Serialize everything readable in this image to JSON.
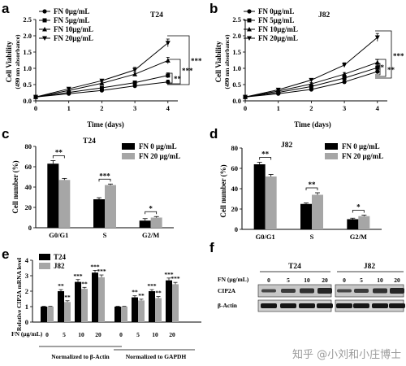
{
  "panels": {
    "a": "a",
    "b": "b",
    "c": "c",
    "d": "d",
    "e": "e",
    "f": "f"
  },
  "panel_a": {
    "title": "T24",
    "ylabel": "Cell Viability",
    "ylabel2": "(490 nm absorbance)",
    "xlabel": "Time (days)",
    "legend": [
      "FN  0μg/mL",
      "FN  5μg/mL",
      "FN  10μg/mL",
      "FN  20μg/mL"
    ],
    "sig": [
      "**",
      "***",
      "***"
    ]
  },
  "panel_b": {
    "title": "J82",
    "ylabel": "Cell Viability",
    "ylabel2": "(490 nm absorbance)",
    "xlabel": "Time (days)",
    "legend": [
      "FN  0μg/mL",
      "FN  5μg/mL",
      "FN  10μg/mL",
      "FN  20μg/mL"
    ],
    "sig": [
      "**",
      "**",
      "***"
    ]
  },
  "panel_c": {
    "title": "T24",
    "ylabel": "Cell number (%)",
    "legend": [
      "FN 0 μg/mL",
      "FN 20 μg/mL"
    ],
    "sig": [
      "**",
      "***",
      "*"
    ]
  },
  "panel_d": {
    "title": "J82",
    "ylabel": "Cell number (%)",
    "legend": [
      "FN 0 μg/mL",
      "FN 20 μg/mL"
    ],
    "sig": [
      "**",
      "**",
      "*"
    ]
  },
  "panel_e": {
    "ylabel": "Relative CIP2A mRNA level",
    "legend": [
      "T24",
      "J82"
    ],
    "fn_label": "FN (μg/mL)",
    "group_labels": [
      "Normalized to β-Actin",
      "Normalized to GAPDH"
    ],
    "sig_t24": [
      "",
      "**",
      "***",
      "***",
      "",
      "**",
      "***",
      "***"
    ],
    "sig_j82": [
      "",
      "**",
      "**",
      "***",
      "",
      "**",
      "**",
      "***"
    ]
  },
  "panel_f": {
    "cell_lines": [
      "T24",
      "J82"
    ],
    "fn_label": "FN (μg/mL)",
    "rows": [
      "CIP2A",
      "β-Actin"
    ]
  },
  "watermark": "知乎 @小刘和小庄博士",
  "chart_data": [
    {
      "type": "line",
      "title": "T24",
      "xlabel": "Time (days)",
      "ylabel": "Cell Viability (490 nm absorbance)",
      "x": [
        0,
        1,
        2,
        3,
        4
      ],
      "xlim": [
        0,
        4.3
      ],
      "ylim": [
        0,
        2.5
      ],
      "xticks": [
        "0",
        "1",
        "2",
        "3",
        "4"
      ],
      "yticks": [
        "0.0",
        "0.5",
        "1.0",
        "1.5",
        "2.0",
        "2.5"
      ],
      "series": [
        {
          "name": "FN  0μg/mL",
          "marker": "circle",
          "values": [
            0.12,
            0.22,
            0.32,
            0.46,
            0.58
          ],
          "err": [
            0.02,
            0.02,
            0.03,
            0.04,
            0.06
          ]
        },
        {
          "name": "FN  5μg/mL",
          "marker": "square",
          "values": [
            0.12,
            0.26,
            0.4,
            0.56,
            0.78
          ],
          "err": [
            0.02,
            0.02,
            0.03,
            0.05,
            0.08
          ]
        },
        {
          "name": "FN  10μg/mL",
          "marker": "triangle-up",
          "values": [
            0.12,
            0.32,
            0.54,
            0.82,
            1.24
          ],
          "err": [
            0.02,
            0.03,
            0.04,
            0.06,
            0.1
          ]
        },
        {
          "name": "FN  20μg/mL",
          "marker": "triangle-down",
          "values": [
            0.12,
            0.37,
            0.62,
            0.95,
            1.78
          ],
          "err": [
            0.02,
            0.03,
            0.04,
            0.08,
            0.12
          ]
        }
      ]
    },
    {
      "type": "line",
      "title": "J82",
      "xlabel": "Time (days)",
      "ylabel": "Cell Viability (490 nm absorbance)",
      "x": [
        0,
        1,
        2,
        3,
        4
      ],
      "xlim": [
        0,
        4.3
      ],
      "ylim": [
        0,
        2.5
      ],
      "xticks": [
        "0",
        "1",
        "2",
        "3",
        "4"
      ],
      "yticks": [
        "0.0",
        "0.5",
        "1.0",
        "1.5",
        "2.0",
        "2.5"
      ],
      "series": [
        {
          "name": "FN  0μg/mL",
          "marker": "circle",
          "values": [
            0.12,
            0.22,
            0.35,
            0.58,
            0.9
          ],
          "err": [
            0.02,
            0.02,
            0.03,
            0.04,
            0.07
          ]
        },
        {
          "name": "FN  5μg/mL",
          "marker": "square",
          "values": [
            0.12,
            0.26,
            0.44,
            0.7,
            1.02
          ],
          "err": [
            0.02,
            0.02,
            0.03,
            0.05,
            0.08
          ]
        },
        {
          "name": "FN  10μg/mL",
          "marker": "triangle-up",
          "values": [
            0.12,
            0.3,
            0.52,
            0.82,
            1.18
          ],
          "err": [
            0.02,
            0.03,
            0.04,
            0.05,
            0.09
          ]
        },
        {
          "name": "FN  20μg/mL",
          "marker": "triangle-down",
          "values": [
            0.12,
            0.34,
            0.64,
            1.1,
            1.95
          ],
          "err": [
            0.02,
            0.03,
            0.04,
            0.07,
            0.12
          ]
        }
      ]
    },
    {
      "type": "bar",
      "title": "T24",
      "ylabel": "Cell number (%)",
      "categories": [
        "G0/G1",
        "S",
        "G2/M"
      ],
      "ylim": [
        0,
        80
      ],
      "yticks": [
        "0",
        "20",
        "40",
        "60",
        "80"
      ],
      "series": [
        {
          "name": "FN 0 μg/mL",
          "color": "#000000",
          "values": [
            63,
            28,
            7
          ],
          "err": [
            3,
            1.5,
            2
          ]
        },
        {
          "name": "FN 20 μg/mL",
          "color": "#a6a6a6",
          "values": [
            47,
            42,
            10
          ],
          "err": [
            1.5,
            1,
            1
          ]
        }
      ]
    },
    {
      "type": "bar",
      "title": "J82",
      "ylabel": "Cell number (%)",
      "categories": [
        "G0/G1",
        "S",
        "G2/M"
      ],
      "ylim": [
        0,
        80
      ],
      "yticks": [
        "0",
        "20",
        "40",
        "60",
        "80"
      ],
      "series": [
        {
          "name": "FN 0 μg/mL",
          "color": "#000000",
          "values": [
            64,
            25,
            10
          ],
          "err": [
            2,
            1,
            1
          ]
        },
        {
          "name": "FN 20 μg/mL",
          "color": "#a6a6a6",
          "values": [
            52,
            34,
            13
          ],
          "err": [
            2,
            2,
            1
          ]
        }
      ]
    },
    {
      "type": "bar",
      "ylabel": "Relative CIP2A mRNA level",
      "categories": [
        "0",
        "5",
        "10",
        "20",
        "0",
        "5",
        "10",
        "20"
      ],
      "ylim": [
        0,
        4
      ],
      "yticks": [
        "0",
        "1",
        "2",
        "3",
        "4"
      ],
      "series": [
        {
          "name": "T24",
          "color": "#000000",
          "values": [
            1.0,
            2.0,
            2.6,
            3.2,
            1.0,
            1.6,
            2.0,
            2.7
          ],
          "err": [
            0.02,
            0.1,
            0.15,
            0.15,
            0.02,
            0.1,
            0.1,
            0.15
          ]
        },
        {
          "name": "J82",
          "color": "#a6a6a6",
          "values": [
            1.0,
            1.3,
            2.15,
            2.9,
            1.0,
            1.4,
            1.55,
            2.45
          ],
          "err": [
            0.02,
            0.08,
            0.1,
            0.15,
            0.02,
            0.08,
            0.1,
            0.12
          ]
        }
      ]
    }
  ]
}
